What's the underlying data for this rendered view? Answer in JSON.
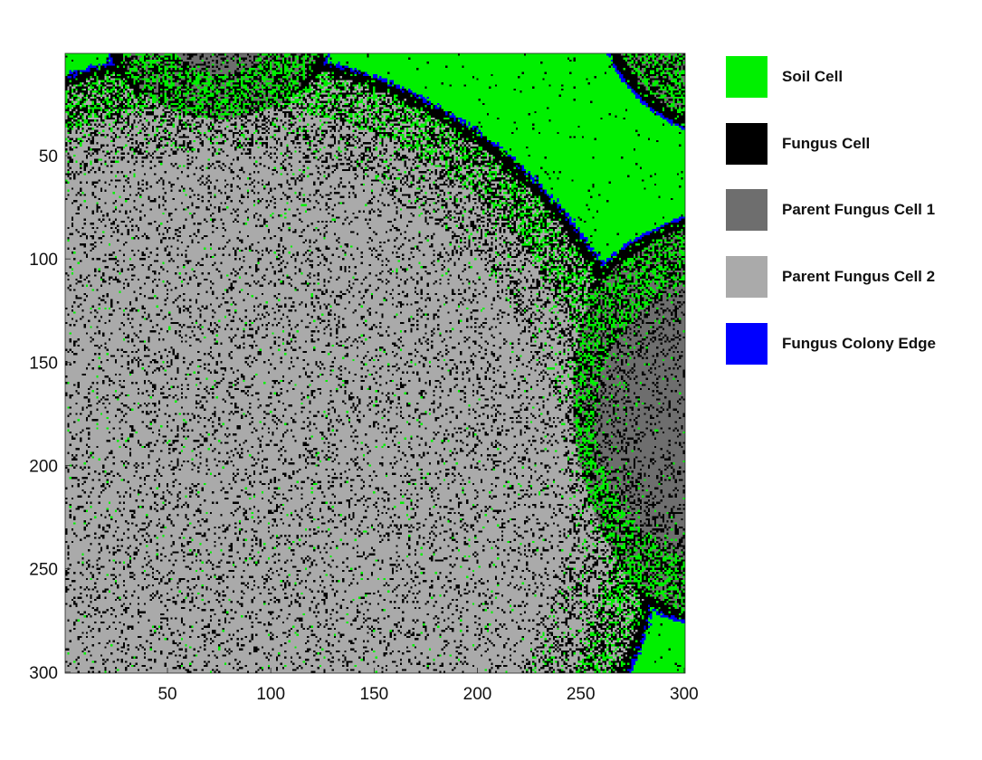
{
  "chart_data": {
    "type": "heatmap",
    "title": "",
    "xlabel": "",
    "ylabel": "",
    "grid_size": [
      300,
      300
    ],
    "xlim": [
      1,
      300
    ],
    "ylim": [
      300,
      1
    ],
    "y_axis_reversed": true,
    "x_ticks": [
      "50",
      "100",
      "150",
      "200",
      "250",
      "300"
    ],
    "y_ticks": [
      "50",
      "100",
      "150",
      "200",
      "250",
      "300"
    ],
    "x_tick_values": [
      50,
      100,
      150,
      200,
      250,
      300
    ],
    "y_tick_values": [
      50,
      100,
      150,
      200,
      250,
      300
    ],
    "grid": false,
    "legend_position": "right",
    "categories": [
      {
        "id": 0,
        "label": "Soil Cell",
        "color": "#00f000"
      },
      {
        "id": 1,
        "label": "Fungus Cell",
        "color": "#000000"
      },
      {
        "id": 2,
        "label": "Parent Fungus Cell 1",
        "color": "#6e6e6e"
      },
      {
        "id": 3,
        "label": "Parent Fungus Cell 2",
        "color": "#aaaaaa"
      },
      {
        "id": 4,
        "label": "Fungus Colony Edge",
        "color": "#0000ff"
      }
    ],
    "colonies": [
      {
        "center": [
          75,
          -15
        ],
        "radius": 56,
        "parent": 2
      },
      {
        "center": [
          75,
          215
        ],
        "radius": 217,
        "parent": 3
      },
      {
        "center": [
          330,
          178
        ],
        "radius": 103,
        "parent": 2
      },
      {
        "center": [
          330,
          -30
        ],
        "radius": 74,
        "parent": 2
      }
    ]
  }
}
